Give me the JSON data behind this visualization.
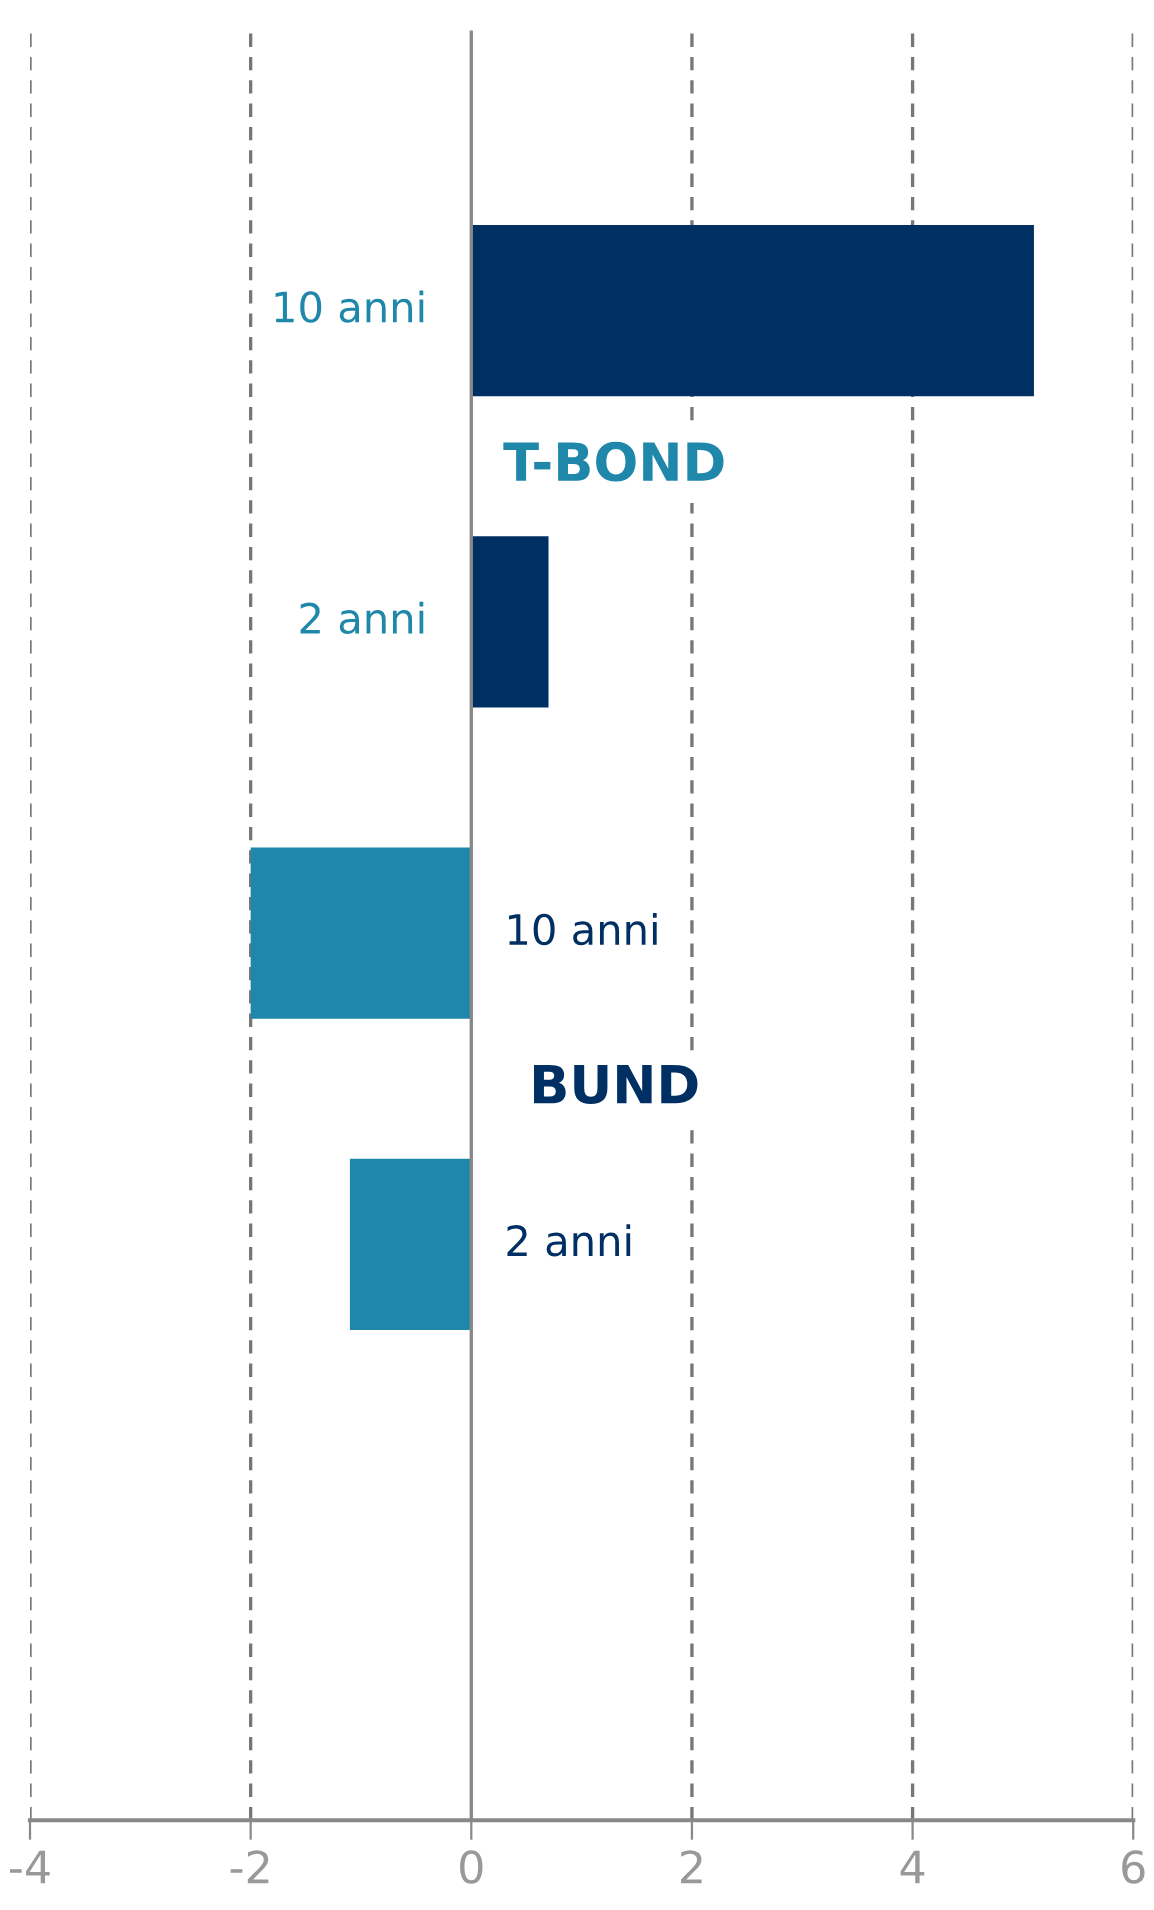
{
  "chart_data": {
    "type": "bar",
    "orientation": "horizontal",
    "categories": [
      "10 anni",
      "2 anni",
      "10 anni",
      "2 anni"
    ],
    "values": [
      5.1,
      0.7,
      -2.0,
      -1.1
    ],
    "colors": [
      "#003063",
      "#003063",
      "#1f87aa",
      "#1f87aa"
    ],
    "xlim": [
      -4,
      6
    ],
    "xticks": [
      -4,
      -2,
      0,
      2,
      4,
      6
    ],
    "grid": "x",
    "legend": false,
    "annotations": [
      "T-BOND",
      "BUND"
    ]
  }
}
